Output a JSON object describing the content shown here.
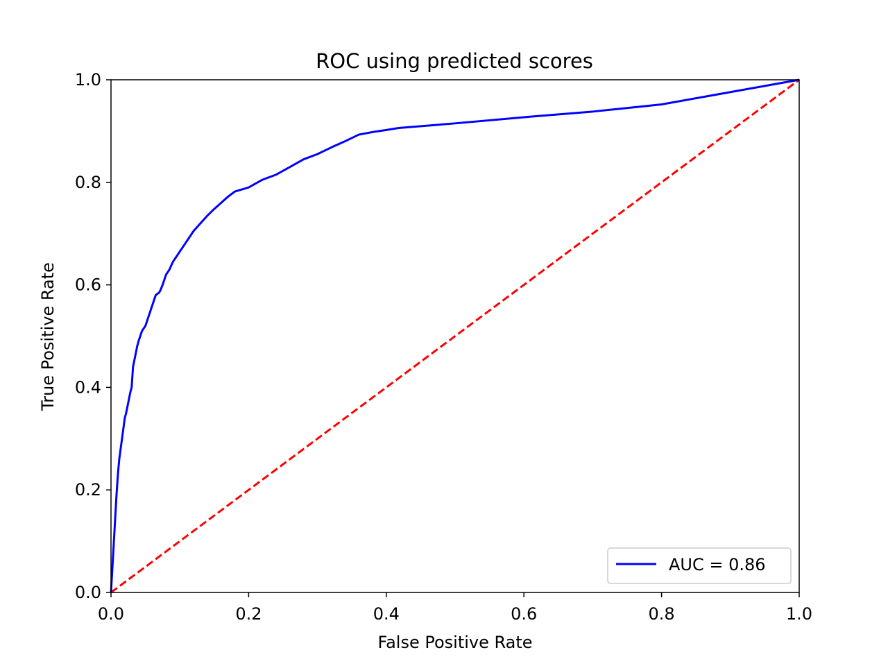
{
  "chart_data": {
    "type": "line",
    "title": "ROC using predicted scores",
    "xlabel": "False Positive Rate",
    "ylabel": "True Positive Rate",
    "xlim": [
      0.0,
      1.0
    ],
    "ylim": [
      0.0,
      1.0
    ],
    "xticks": [
      0.0,
      0.2,
      0.4,
      0.6,
      0.8,
      1.0
    ],
    "yticks": [
      0.0,
      0.2,
      0.4,
      0.6,
      0.8,
      1.0
    ],
    "xtick_labels": [
      "0.0",
      "0.2",
      "0.4",
      "0.6",
      "0.8",
      "1.0"
    ],
    "ytick_labels": [
      "0.0",
      "0.2",
      "0.4",
      "0.6",
      "0.8",
      "1.0"
    ],
    "grid": false,
    "legend_position": "bottom-right",
    "series": [
      {
        "name": "AUC = 0.86",
        "color": "#0000ff",
        "style": "solid",
        "x": [
          0.0,
          0.008,
          0.01,
          0.012,
          0.015,
          0.018,
          0.02,
          0.022,
          0.025,
          0.028,
          0.03,
          0.032,
          0.035,
          0.038,
          0.04,
          0.045,
          0.05,
          0.055,
          0.06,
          0.065,
          0.07,
          0.072,
          0.075,
          0.08,
          0.085,
          0.09,
          0.1,
          0.11,
          0.12,
          0.13,
          0.14,
          0.15,
          0.16,
          0.17,
          0.18,
          0.2,
          0.22,
          0.24,
          0.26,
          0.28,
          0.3,
          0.32,
          0.34,
          0.36,
          0.38,
          0.4,
          0.418,
          0.5,
          0.6,
          0.7,
          0.8,
          0.9,
          1.0
        ],
        "y": [
          0.0,
          0.19,
          0.23,
          0.26,
          0.29,
          0.32,
          0.34,
          0.35,
          0.37,
          0.39,
          0.4,
          0.44,
          0.46,
          0.48,
          0.49,
          0.51,
          0.52,
          0.54,
          0.56,
          0.58,
          0.585,
          0.59,
          0.6,
          0.62,
          0.63,
          0.645,
          0.665,
          0.685,
          0.705,
          0.72,
          0.735,
          0.748,
          0.76,
          0.772,
          0.782,
          0.79,
          0.805,
          0.815,
          0.83,
          0.845,
          0.855,
          0.868,
          0.88,
          0.893,
          0.898,
          0.902,
          0.906,
          0.915,
          0.927,
          0.938,
          0.952,
          0.976,
          1.0
        ]
      },
      {
        "name": "",
        "color": "#ff0000",
        "style": "dashed",
        "x": [
          0.0,
          1.0
        ],
        "y": [
          0.0,
          1.0
        ]
      }
    ],
    "legend": [
      {
        "label": "AUC = 0.86",
        "color": "#0000ff"
      }
    ]
  }
}
